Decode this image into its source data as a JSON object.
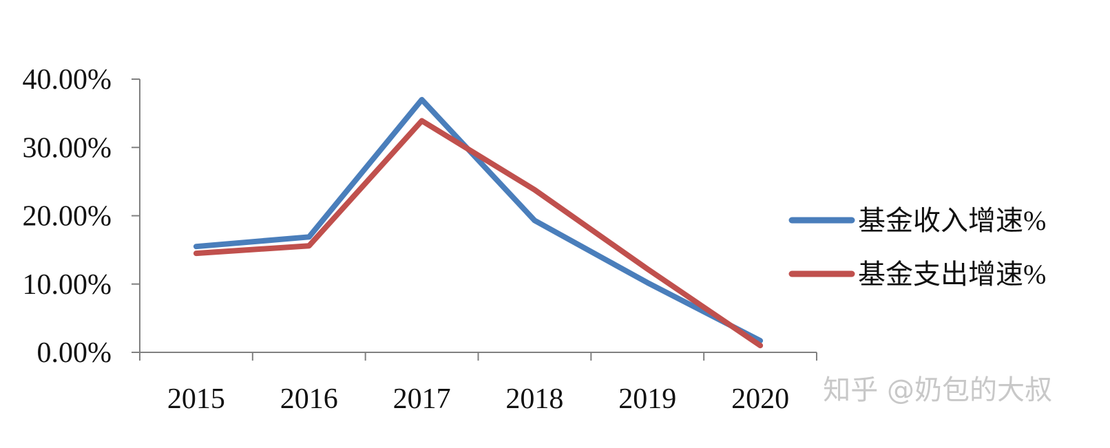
{
  "chart_data": {
    "type": "line",
    "categories": [
      "2015",
      "2016",
      "2017",
      "2018",
      "2019",
      "2020"
    ],
    "y_ticks": [
      "0.00%",
      "10.00%",
      "20.00%",
      "30.00%",
      "40.00%"
    ],
    "ylim": [
      0,
      40
    ],
    "grid": false,
    "legend_position": "right",
    "series": [
      {
        "name": "基金收入增速%",
        "color": "#4a7ebb",
        "values": [
          15.5,
          16.9,
          37.0,
          19.3,
          10.2,
          1.7
        ]
      },
      {
        "name": "基金支出增速%",
        "color": "#c0504d",
        "values": [
          14.5,
          15.6,
          33.9,
          23.8,
          12.2,
          1.0
        ]
      }
    ]
  },
  "watermark": "知乎 @奶包的大叔"
}
